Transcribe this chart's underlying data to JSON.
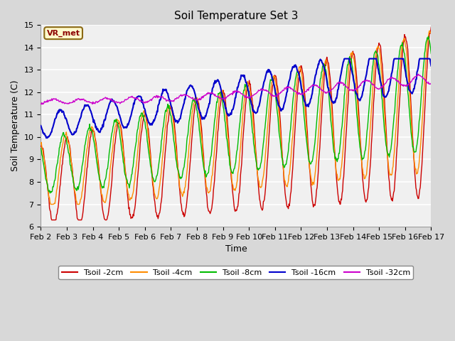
{
  "title": "Soil Temperature Set 3",
  "xlabel": "Time",
  "ylabel": "Soil Temperature (C)",
  "ylim": [
    6.0,
    15.0
  ],
  "yticks": [
    6.0,
    7.0,
    8.0,
    9.0,
    10.0,
    11.0,
    12.0,
    13.0,
    14.0,
    15.0
  ],
  "xtick_labels": [
    "Feb 2",
    "Feb 3",
    "Feb 4",
    "Feb 5",
    "Feb 6",
    "Feb 7",
    "Feb 8",
    "Feb 9",
    "Feb 10",
    "Feb 11",
    "Feb 12",
    "Feb 13",
    "Feb 14",
    "Feb 15",
    "Feb 16",
    "Feb 17"
  ],
  "series": {
    "Tsoil -2cm": {
      "color": "#CC0000",
      "lw": 1.0
    },
    "Tsoil -4cm": {
      "color": "#FF8C00",
      "lw": 1.0
    },
    "Tsoil -8cm": {
      "color": "#00BB00",
      "lw": 1.0
    },
    "Tsoil -16cm": {
      "color": "#0000CC",
      "lw": 1.5
    },
    "Tsoil -32cm": {
      "color": "#CC00CC",
      "lw": 1.0
    }
  },
  "legend_label": "VR_met",
  "background_color": "#D8D8D8",
  "plot_bg_color": "#F0F0F0",
  "grid_color": "#FFFFFF",
  "title_fontsize": 11,
  "label_fontsize": 9,
  "tick_fontsize": 8
}
